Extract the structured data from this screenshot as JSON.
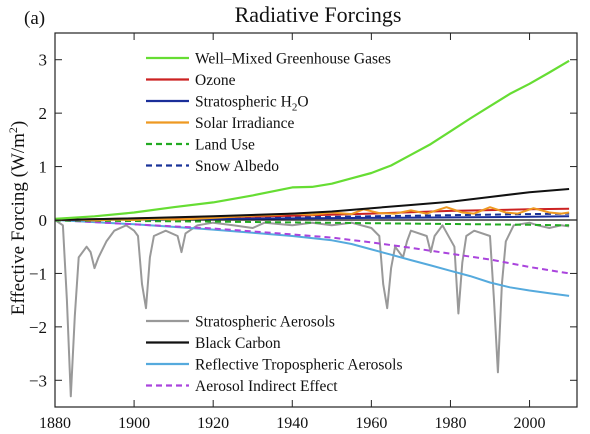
{
  "panel_label": "(a)",
  "chart_data": {
    "type": "line",
    "title": "Radiative Forcings",
    "ylabel_main": "Effective Forcing (W/m",
    "ylabel_sup": "2",
    "ylabel_close": ")",
    "xlabel": "",
    "xlim": [
      1880,
      2012
    ],
    "ylim": [
      -3.5,
      3.5
    ],
    "xticks": [
      1880,
      1900,
      1920,
      1940,
      1960,
      1980,
      2000
    ],
    "yticks": [
      -3,
      -2,
      -1,
      0,
      1,
      2,
      3
    ],
    "grid": false,
    "legend_top_placement": "upper-left",
    "legend_bottom_placement": "lower-left",
    "series": [
      {
        "name": "Well–Mixed Greenhouse Gases",
        "legend": "top",
        "color": "#66dd33",
        "dash": "solid",
        "points": [
          [
            1880,
            0.02
          ],
          [
            1890,
            0.07
          ],
          [
            1900,
            0.14
          ],
          [
            1910,
            0.24
          ],
          [
            1920,
            0.33
          ],
          [
            1930,
            0.46
          ],
          [
            1940,
            0.61
          ],
          [
            1945,
            0.62
          ],
          [
            1950,
            0.68
          ],
          [
            1955,
            0.78
          ],
          [
            1960,
            0.88
          ],
          [
            1965,
            1.02
          ],
          [
            1970,
            1.22
          ],
          [
            1975,
            1.42
          ],
          [
            1980,
            1.66
          ],
          [
            1985,
            1.9
          ],
          [
            1990,
            2.13
          ],
          [
            1995,
            2.36
          ],
          [
            2000,
            2.55
          ],
          [
            2005,
            2.76
          ],
          [
            2010,
            2.98
          ]
        ]
      },
      {
        "name": "Ozone",
        "legend": "top",
        "color": "#cc2222",
        "dash": "solid",
        "points": [
          [
            1880,
            0.0
          ],
          [
            1900,
            0.03
          ],
          [
            1920,
            0.05
          ],
          [
            1940,
            0.08
          ],
          [
            1960,
            0.12
          ],
          [
            1980,
            0.17
          ],
          [
            2000,
            0.2
          ],
          [
            2010,
            0.21
          ]
        ]
      },
      {
        "name": "Stratospheric H",
        "name_sub": "2",
        "name_tail": "O",
        "legend": "top",
        "color": "#1a2e99",
        "dash": "solid",
        "points": [
          [
            1880,
            0.0
          ],
          [
            1920,
            0.02
          ],
          [
            1960,
            0.04
          ],
          [
            2000,
            0.06
          ],
          [
            2010,
            0.07
          ]
        ]
      },
      {
        "name": "Solar Irradiance",
        "legend": "top",
        "color": "#ee9922",
        "dash": "solid",
        "points": [
          [
            1880,
            0.0
          ],
          [
            1885,
            0.01
          ],
          [
            1890,
            -0.01
          ],
          [
            1895,
            0.01
          ],
          [
            1900,
            0.0
          ],
          [
            1905,
            0.02
          ],
          [
            1910,
            0.01
          ],
          [
            1915,
            0.02
          ],
          [
            1920,
            0.04
          ],
          [
            1925,
            0.06
          ],
          [
            1930,
            0.08
          ],
          [
            1935,
            0.09
          ],
          [
            1940,
            0.12
          ],
          [
            1945,
            0.1
          ],
          [
            1950,
            0.14
          ],
          [
            1955,
            0.11
          ],
          [
            1958,
            0.2
          ],
          [
            1962,
            0.13
          ],
          [
            1966,
            0.12
          ],
          [
            1970,
            0.18
          ],
          [
            1974,
            0.12
          ],
          [
            1979,
            0.24
          ],
          [
            1983,
            0.14
          ],
          [
            1986,
            0.12
          ],
          [
            1990,
            0.24
          ],
          [
            1994,
            0.14
          ],
          [
            1997,
            0.12
          ],
          [
            2001,
            0.22
          ],
          [
            2005,
            0.14
          ],
          [
            2008,
            0.12
          ],
          [
            2010,
            0.14
          ]
        ]
      },
      {
        "name": "Land Use",
        "legend": "top",
        "color": "#22aa22",
        "dash": "dashed",
        "points": [
          [
            1880,
            -0.01
          ],
          [
            1920,
            -0.03
          ],
          [
            1960,
            -0.06
          ],
          [
            2000,
            -0.09
          ],
          [
            2010,
            -0.1
          ]
        ]
      },
      {
        "name": "Snow Albedo",
        "legend": "top",
        "color": "#1a3399",
        "dash": "dashed",
        "points": [
          [
            1880,
            0.0
          ],
          [
            1920,
            0.03
          ],
          [
            1960,
            0.07
          ],
          [
            2000,
            0.11
          ],
          [
            2010,
            0.12
          ]
        ]
      },
      {
        "name": "Stratospheric Aerosols",
        "legend": "bottom",
        "color": "#999999",
        "dash": "solid",
        "points": [
          [
            1880,
            0.0
          ],
          [
            1882,
            -0.1
          ],
          [
            1883,
            -1.5
          ],
          [
            1884,
            -3.3
          ],
          [
            1885,
            -1.8
          ],
          [
            1886,
            -0.7
          ],
          [
            1888,
            -0.5
          ],
          [
            1889,
            -0.6
          ],
          [
            1890,
            -0.9
          ],
          [
            1891,
            -0.7
          ],
          [
            1893,
            -0.4
          ],
          [
            1895,
            -0.2
          ],
          [
            1898,
            -0.1
          ],
          [
            1900,
            -0.2
          ],
          [
            1901,
            -0.3
          ],
          [
            1902,
            -1.2
          ],
          [
            1903,
            -1.65
          ],
          [
            1904,
            -0.7
          ],
          [
            1905,
            -0.3
          ],
          [
            1908,
            -0.2
          ],
          [
            1911,
            -0.3
          ],
          [
            1912,
            -0.6
          ],
          [
            1913,
            -0.25
          ],
          [
            1916,
            -0.1
          ],
          [
            1920,
            -0.05
          ],
          [
            1925,
            -0.1
          ],
          [
            1930,
            -0.15
          ],
          [
            1933,
            -0.05
          ],
          [
            1940,
            -0.1
          ],
          [
            1945,
            -0.05
          ],
          [
            1950,
            -0.1
          ],
          [
            1955,
            -0.05
          ],
          [
            1960,
            -0.15
          ],
          [
            1962,
            -0.3
          ],
          [
            1963,
            -1.2
          ],
          [
            1964,
            -1.65
          ],
          [
            1965,
            -0.9
          ],
          [
            1966,
            -0.5
          ],
          [
            1968,
            -0.7
          ],
          [
            1969,
            -0.4
          ],
          [
            1970,
            -0.2
          ],
          [
            1974,
            -0.3
          ],
          [
            1975,
            -0.6
          ],
          [
            1976,
            -0.3
          ],
          [
            1978,
            -0.1
          ],
          [
            1981,
            -0.5
          ],
          [
            1982,
            -1.75
          ],
          [
            1983,
            -0.8
          ],
          [
            1984,
            -0.3
          ],
          [
            1986,
            -0.2
          ],
          [
            1990,
            -0.3
          ],
          [
            1991,
            -1.5
          ],
          [
            1992,
            -2.85
          ],
          [
            1993,
            -1.2
          ],
          [
            1994,
            -0.4
          ],
          [
            1996,
            -0.1
          ],
          [
            2000,
            -0.05
          ],
          [
            2002,
            -0.1
          ],
          [
            2005,
            -0.15
          ],
          [
            2008,
            -0.1
          ],
          [
            2010,
            -0.12
          ]
        ]
      },
      {
        "name": "Black Carbon",
        "legend": "bottom",
        "color": "#111111",
        "dash": "solid",
        "points": [
          [
            1880,
            0.0
          ],
          [
            1900,
            0.03
          ],
          [
            1920,
            0.07
          ],
          [
            1940,
            0.12
          ],
          [
            1950,
            0.16
          ],
          [
            1960,
            0.22
          ],
          [
            1970,
            0.28
          ],
          [
            1980,
            0.34
          ],
          [
            1990,
            0.43
          ],
          [
            2000,
            0.52
          ],
          [
            2010,
            0.58
          ]
        ]
      },
      {
        "name": "Reflective Tropospheric Aerosols",
        "legend": "bottom",
        "color": "#55aadd",
        "dash": "solid",
        "points": [
          [
            1880,
            0.0
          ],
          [
            1890,
            -0.04
          ],
          [
            1900,
            -0.08
          ],
          [
            1910,
            -0.13
          ],
          [
            1920,
            -0.18
          ],
          [
            1930,
            -0.24
          ],
          [
            1940,
            -0.3
          ],
          [
            1950,
            -0.38
          ],
          [
            1955,
            -0.45
          ],
          [
            1960,
            -0.55
          ],
          [
            1965,
            -0.65
          ],
          [
            1970,
            -0.75
          ],
          [
            1975,
            -0.85
          ],
          [
            1980,
            -0.95
          ],
          [
            1985,
            -1.05
          ],
          [
            1990,
            -1.17
          ],
          [
            1995,
            -1.26
          ],
          [
            2000,
            -1.32
          ],
          [
            2005,
            -1.37
          ],
          [
            2010,
            -1.42
          ]
        ]
      },
      {
        "name": "Aerosol Indirect Effect",
        "legend": "bottom",
        "color": "#aa44dd",
        "dash": "dashed",
        "points": [
          [
            1880,
            0.0
          ],
          [
            1900,
            -0.08
          ],
          [
            1920,
            -0.16
          ],
          [
            1940,
            -0.27
          ],
          [
            1950,
            -0.33
          ],
          [
            1960,
            -0.42
          ],
          [
            1970,
            -0.52
          ],
          [
            1980,
            -0.63
          ],
          [
            1990,
            -0.74
          ],
          [
            2000,
            -0.88
          ],
          [
            2010,
            -1.0
          ]
        ]
      }
    ]
  }
}
